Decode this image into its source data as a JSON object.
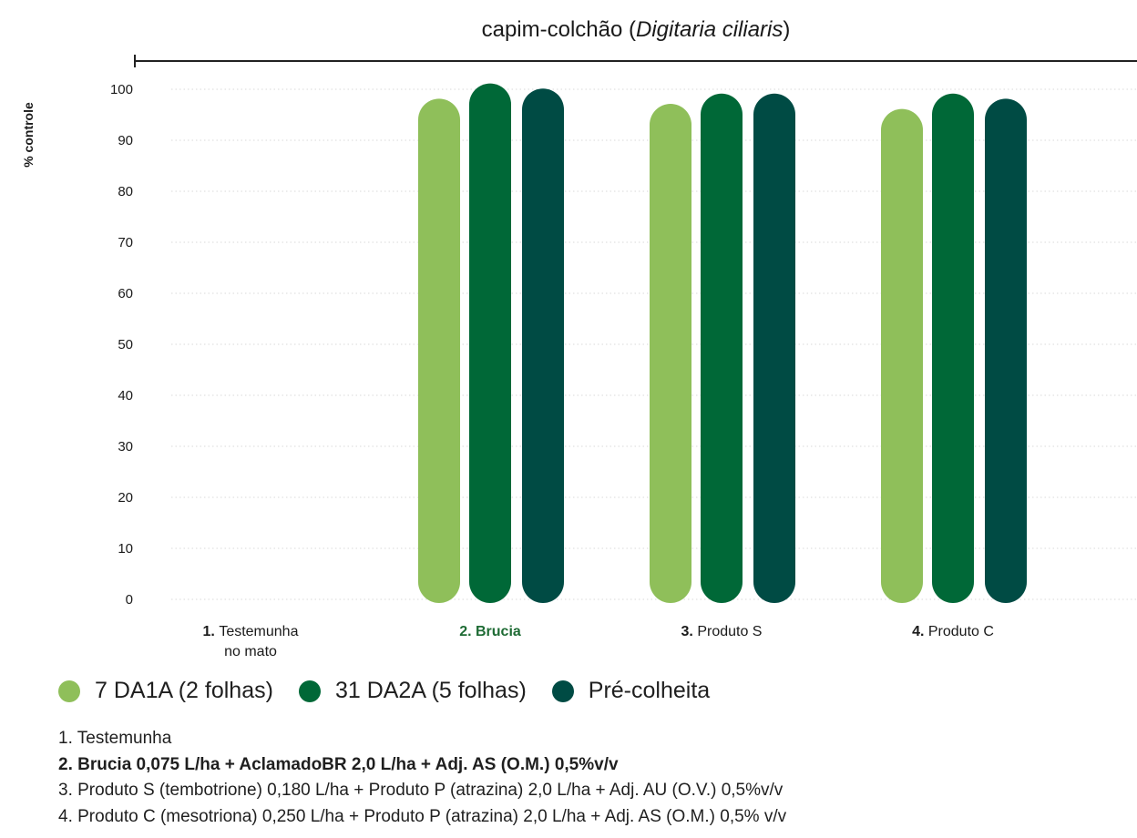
{
  "chart_data": {
    "type": "bar",
    "title_prefix": "capim-colchão (",
    "title_italic": "Digitaria ciliaris",
    "title_suffix": ")",
    "ylabel": "% controle",
    "ylim": [
      0,
      100
    ],
    "yticks": [
      "100",
      "90",
      "80",
      "70",
      "60",
      "50",
      "40",
      "30",
      "20",
      "10",
      "0"
    ],
    "grid": true,
    "categories": [
      {
        "num": "1.",
        "lines": [
          "Testemunha",
          "no mato"
        ],
        "highlight": false
      },
      {
        "num": "2.",
        "lines": [
          "Brucia"
        ],
        "highlight": true
      },
      {
        "num": "3.",
        "lines": [
          "Produto S"
        ],
        "highlight": false
      },
      {
        "num": "4.",
        "lines": [
          "Produto C"
        ],
        "highlight": false
      }
    ],
    "series": [
      {
        "name": "7 DA1A (2 folhas)",
        "color": "#8fbf5a",
        "values": [
          0,
          96,
          95,
          94
        ]
      },
      {
        "name": "31 DA2A (5 folhas)",
        "color": "#006837",
        "values": [
          0,
          99,
          97,
          97
        ]
      },
      {
        "name": "Pré-colheita",
        "color": "#004b44",
        "values": [
          0,
          98,
          97,
          96
        ]
      }
    ],
    "legend_position": "bottom-left"
  },
  "footnotes": [
    {
      "text": "1. Testemunha",
      "bold": false
    },
    {
      "text": "2. Brucia 0,075 L/ha + AclamadoBR 2,0 L/ha + Adj. AS (O.M.) 0,5%v/v",
      "bold": true
    },
    {
      "text": "3. Produto S (tembotrione) 0,180 L/ha + Produto P (atrazina) 2,0 L/ha + Adj. AU (O.V.) 0,5%v/v",
      "bold": false
    },
    {
      "text": "4. Produto C (mesotriona) 0,250 L/ha + Produto P (atrazina) 2,0 L/ha + Adj. AS (O.M.) 0,5% v/v",
      "bold": false
    }
  ],
  "colors": {
    "highlight_label": "#1e6b34",
    "axis": "#222222",
    "grid": "#d9d9d9"
  }
}
